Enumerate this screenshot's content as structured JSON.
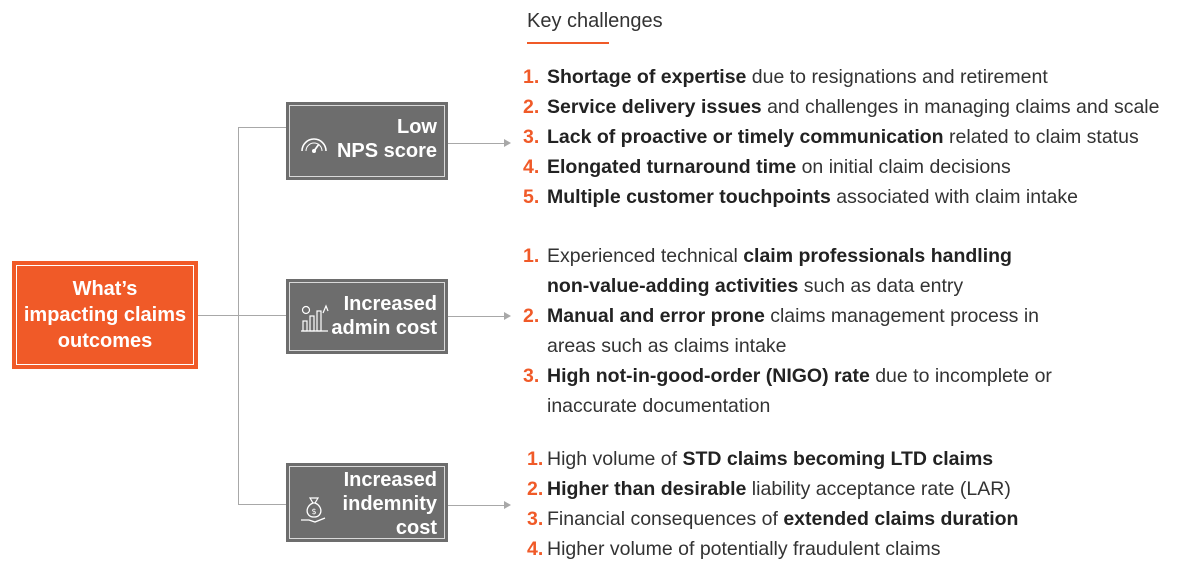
{
  "header": {
    "title": "Key challenges"
  },
  "root": {
    "label": "What’s\nimpacting claims\noutcomes"
  },
  "colors": {
    "accent": "#f05a28",
    "category_box": "#6d6d6d",
    "connector": "#a8a8a8"
  },
  "categories": [
    {
      "label": "Low\nNPS score",
      "icon": "speedometer-icon",
      "items": [
        {
          "num": "1.",
          "bold": "Shortage of expertise",
          "rest": " due to resignations and retirement"
        },
        {
          "num": "2.",
          "bold": "Service delivery issues",
          "rest": " and challenges in managing claims and scale"
        },
        {
          "num": "3.",
          "bold": "Lack of proactive or timely communication",
          "rest": " related to claim status"
        },
        {
          "num": "4.",
          "bold": "Elongated turnaround time",
          "rest": " on initial claim decisions"
        },
        {
          "num": "5.",
          "bold": "Multiple customer touchpoints",
          "rest": " associated with claim intake"
        }
      ]
    },
    {
      "label": "Increased\nadmin cost",
      "icon": "cost-growth-icon",
      "items": [
        {
          "num": "1.",
          "pre": "Experienced technical ",
          "bold": "claim professionals handling",
          "bold2": "non-value-adding activities",
          "rest": " such as data entry"
        },
        {
          "num": "2.",
          "bold": "Manual and error prone",
          "rest": " claims management process in",
          "cont": "areas such as claims intake"
        },
        {
          "num": "3.",
          "bold": "High not-in-good-order (NIGO) rate",
          "rest": " due to incomplete or",
          "cont": "inaccurate documentation"
        }
      ]
    },
    {
      "label": "Increased\nindemnity\ncost",
      "icon": "money-bag-hand-icon",
      "items": [
        {
          "num": "1.",
          "pre": "High volume of ",
          "bold": "STD claims becoming LTD claims",
          "rest": ""
        },
        {
          "num": "2.",
          "pre": "",
          "bold": "Higher than desirable",
          "rest": " liability acceptance rate (LAR)"
        },
        {
          "num": "3.",
          "pre": "Financial consequences of ",
          "bold": "extended claims duration",
          "rest": ""
        },
        {
          "num": "4.",
          "pre": "Higher volume of potentially fraudulent claims",
          "bold": "",
          "rest": ""
        }
      ]
    }
  ]
}
